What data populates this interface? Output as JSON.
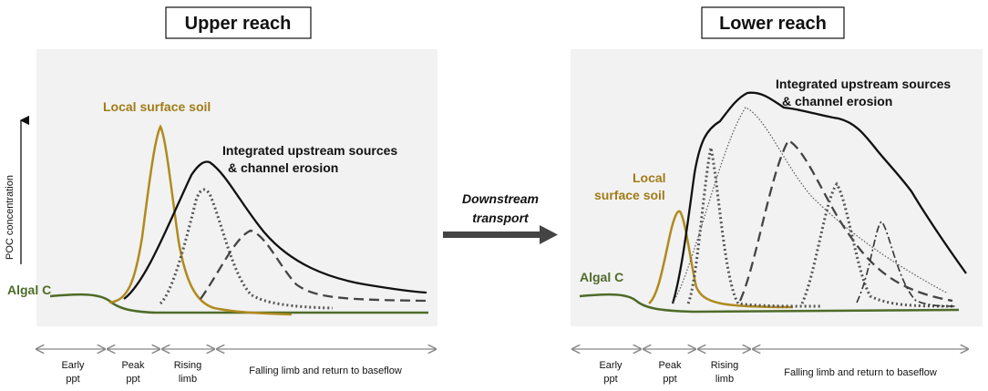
{
  "colors": {
    "panel_bg": "#f2f2f2",
    "soil": "#b08a1e",
    "algal": "#4e6b28",
    "curve": "#111111",
    "arrow": "#444444"
  },
  "y_axis_label": "POC concentration",
  "center_arrow": {
    "line1": "Downstream",
    "line2": "transport"
  },
  "left_panel": {
    "title": "Upper reach",
    "label_soil": "Local surface soil",
    "label_upstream_1": "Integrated upstream sources",
    "label_upstream_2": "& channel erosion",
    "label_algal": "Algal C"
  },
  "right_panel": {
    "title": "Lower reach",
    "label_soil_1": "Local",
    "label_soil_2": "surface soil",
    "label_upstream_1": "Integrated upstream sources",
    "label_upstream_2": "& channel erosion",
    "label_algal": "Algal C"
  },
  "phases": {
    "early_1": "Early",
    "early_2": "ppt",
    "peak_1": "Peak",
    "peak_2": "ppt",
    "rising_1": "Rising",
    "rising_2": "limb",
    "falling": "Falling limb and return to baseflow"
  }
}
